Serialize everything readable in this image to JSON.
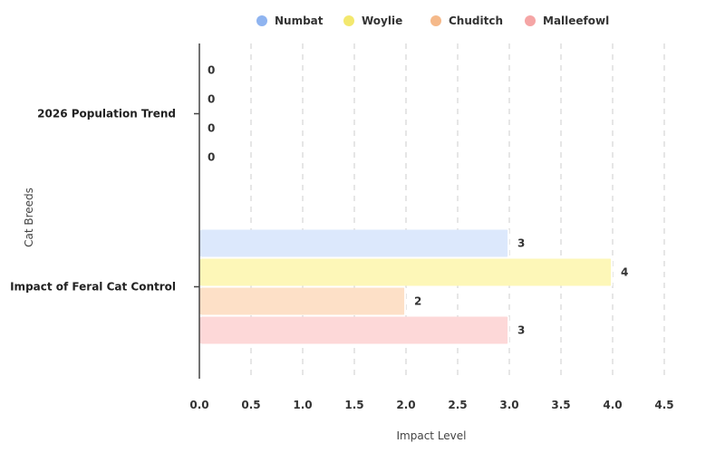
{
  "chart_data": {
    "type": "bar",
    "orientation": "horizontal",
    "categories": [
      "2026 Population Trend",
      "Impact of Feral Cat Control"
    ],
    "series": [
      {
        "name": "Numbat",
        "values": [
          0,
          3
        ],
        "color": "#8fb4f0",
        "fill": "#dce8fc"
      },
      {
        "name": "Woylie",
        "values": [
          0,
          4
        ],
        "color": "#f3e86e",
        "fill": "#fdf7b8"
      },
      {
        "name": "Chuditch",
        "values": [
          0,
          2
        ],
        "color": "#f5b98a",
        "fill": "#fde0c7"
      },
      {
        "name": "Malleefowl",
        "values": [
          0,
          3
        ],
        "color": "#f5a5a5",
        "fill": "#fdd8d8"
      }
    ],
    "xlabel": "Impact Level",
    "ylabel": "Cat Breeds",
    "xlim": [
      0,
      4.5
    ],
    "xticks": [
      "0.0",
      "0.5",
      "1.0",
      "1.5",
      "2.0",
      "2.5",
      "3.0",
      "3.5",
      "4.0",
      "4.5"
    ],
    "grid": "vertical dashed",
    "legend": "top-center"
  }
}
